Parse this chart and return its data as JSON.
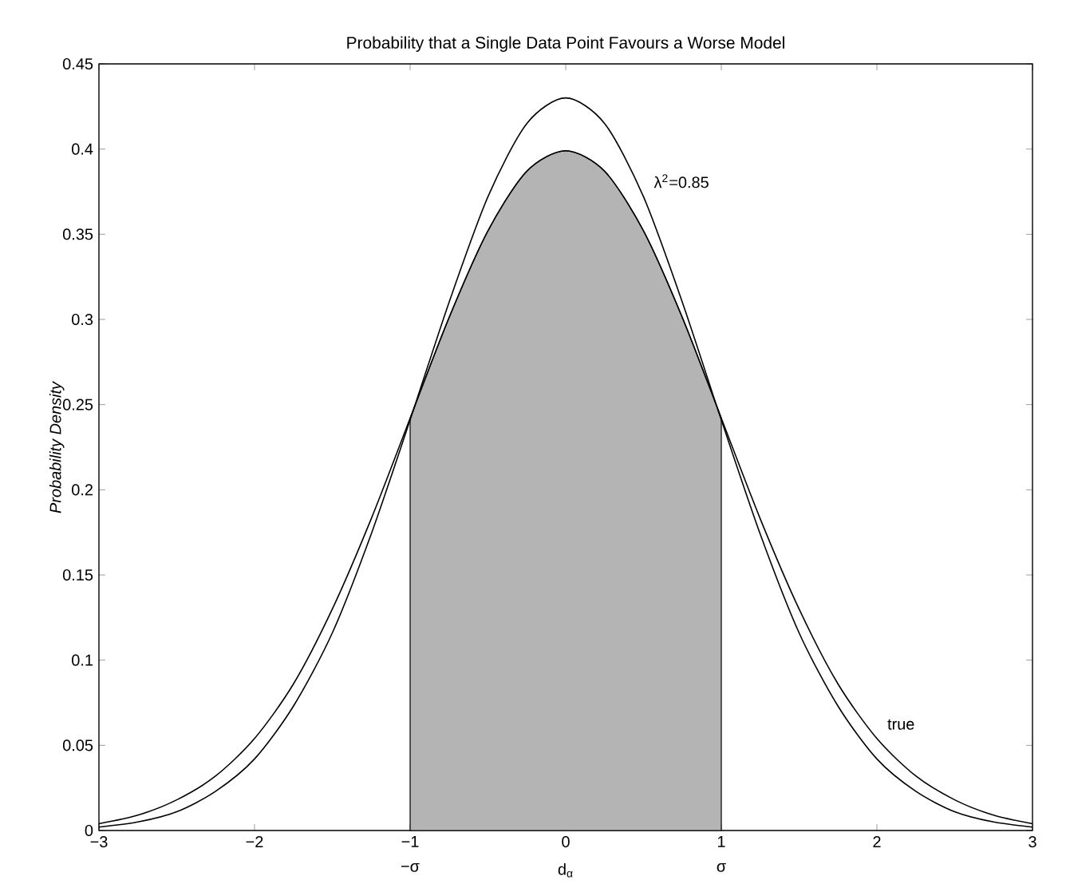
{
  "chart_data": {
    "type": "line",
    "title": "Probability that a Single Data Point Favours a Worse Model",
    "ylabel": "*Probability Density*",
    "xlim": [
      -3,
      3
    ],
    "ylim": [
      0,
      0.45
    ],
    "xticks": [
      {
        "value": -3,
        "label": "−3"
      },
      {
        "value": -2,
        "label": "−2"
      },
      {
        "value": -1,
        "label": "−1"
      },
      0,
      1,
      2,
      3
    ],
    "yticks": [
      0,
      0.05,
      0.1,
      0.15,
      0.2,
      0.25,
      0.3,
      0.35,
      0.4,
      0.45
    ],
    "series": [
      {
        "type": "area",
        "color": "#b4b4b4",
        "x": [
          -1,
          -0.75,
          -0.5,
          -0.25,
          0,
          0.25,
          0.5,
          0.75,
          1
        ],
        "values": [
          0.242,
          0.301,
          0.352,
          0.387,
          0.399,
          0.387,
          0.352,
          0.301,
          0.242
        ]
      },
      {
        "name": "true",
        "color": "#000000",
        "x": [
          -3,
          -2.75,
          -2.5,
          -2.25,
          -2,
          -1.75,
          -1.5,
          -1.25,
          -1,
          -0.75,
          -0.5,
          -0.25,
          0,
          0.25,
          0.5,
          0.75,
          1,
          1.25,
          1.5,
          1.75,
          2,
          2.25,
          2.5,
          2.75,
          3
        ],
        "values": [
          0.004,
          0.009,
          0.018,
          0.032,
          0.054,
          0.086,
          0.13,
          0.183,
          0.242,
          0.301,
          0.352,
          0.387,
          0.399,
          0.387,
          0.352,
          0.301,
          0.242,
          0.183,
          0.13,
          0.086,
          0.054,
          0.032,
          0.018,
          0.009,
          0.004
        ]
      },
      {
        "name": "λ$^{2}$=0.85",
        "color": "#000000",
        "x": [
          -3,
          -2.75,
          -2.5,
          -2.25,
          -2,
          -1.75,
          -1.5,
          -1.25,
          -1,
          -0.75,
          -0.5,
          -0.25,
          0,
          0.25,
          0.5,
          0.75,
          1,
          1.25,
          1.5,
          1.75,
          2,
          2.25,
          2.5,
          2.75,
          3
        ],
        "values": [
          0.002,
          0.005,
          0.011,
          0.023,
          0.042,
          0.073,
          0.116,
          0.174,
          0.241,
          0.31,
          0.372,
          0.415,
          0.43,
          0.415,
          0.372,
          0.31,
          0.241,
          0.174,
          0.116,
          0.073,
          0.042,
          0.023,
          0.011,
          0.005,
          0.002
        ]
      }
    ],
    "annotations": [
      {
        "text": "−σ",
        "x": -1,
        "y": 0
      },
      {
        "text": "d$_{α}$",
        "x": 0,
        "y": 0
      },
      {
        "text": "σ",
        "x": 1,
        "y": 0
      }
    ],
    "grid": false,
    "legend": false
  }
}
